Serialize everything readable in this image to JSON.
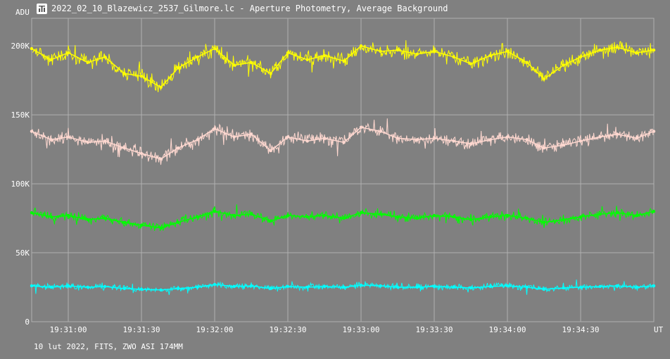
{
  "window": {
    "title": "2022_02_10_Blazewicz_2537_Gilmore.lc - Aperture Photometry, Average Background",
    "icon": "photometry-app-icon"
  },
  "footer": {
    "info": "10 lut 2022, FITS, ZWO ASI 174MM"
  },
  "colors": {
    "background": "#808080",
    "grid": "#b0b0b0",
    "text": "#ffffff"
  },
  "chart_data": {
    "type": "line",
    "ylabel": "ADU",
    "xlabel": "UT",
    "y_tick_labels": [
      "0",
      "50K",
      "100K",
      "150K",
      "200K"
    ],
    "y_ticks": [
      0,
      50000,
      100000,
      150000,
      200000
    ],
    "ylim": [
      0,
      220000
    ],
    "x_tick_labels": [
      "19:31:00",
      "19:31:30",
      "19:32:00",
      "19:32:30",
      "19:33:00",
      "19:33:30",
      "19:34:00",
      "19:34:30"
    ],
    "x_ticks": [
      "19:31:00",
      "19:31:30",
      "19:32:00",
      "19:32:30",
      "19:33:00",
      "19:33:30",
      "19:34:00",
      "19:34:30"
    ],
    "xlim": [
      "19:30:45",
      "19:35:00"
    ],
    "grid": true,
    "series": [
      {
        "color": "#ffff00",
        "x": [
          "19:30:45",
          "19:30:53",
          "19:31:00",
          "19:31:08",
          "19:31:15",
          "19:31:23",
          "19:31:30",
          "19:31:38",
          "19:31:45",
          "19:31:53",
          "19:32:00",
          "19:32:08",
          "19:32:15",
          "19:32:23",
          "19:32:30",
          "19:32:38",
          "19:32:45",
          "19:32:53",
          "19:33:00",
          "19:33:08",
          "19:33:15",
          "19:33:23",
          "19:33:30",
          "19:33:38",
          "19:33:45",
          "19:33:53",
          "19:34:00",
          "19:34:08",
          "19:34:15",
          "19:34:23",
          "19:34:30",
          "19:34:38",
          "19:34:45",
          "19:34:53",
          "19:35:00"
        ],
        "values": [
          198000,
          190000,
          195000,
          188000,
          192000,
          180000,
          178000,
          170000,
          184000,
          192000,
          198000,
          186000,
          188000,
          180000,
          195000,
          190000,
          193000,
          189000,
          200000,
          196000,
          197000,
          194000,
          196000,
          192000,
          187000,
          193000,
          196000,
          188000,
          176000,
          186000,
          192000,
          197000,
          199000,
          195000,
          197000
        ]
      },
      {
        "color": "#ffd8d0",
        "x": [
          "19:30:45",
          "19:30:53",
          "19:31:00",
          "19:31:08",
          "19:31:15",
          "19:31:23",
          "19:31:30",
          "19:31:38",
          "19:31:45",
          "19:31:53",
          "19:32:00",
          "19:32:08",
          "19:32:15",
          "19:32:23",
          "19:32:30",
          "19:32:38",
          "19:32:45",
          "19:32:53",
          "19:33:00",
          "19:33:08",
          "19:33:15",
          "19:33:23",
          "19:33:30",
          "19:33:38",
          "19:33:45",
          "19:33:53",
          "19:34:00",
          "19:34:08",
          "19:34:15",
          "19:34:23",
          "19:34:30",
          "19:34:38",
          "19:34:45",
          "19:34:53",
          "19:35:00"
        ],
        "values": [
          138000,
          132000,
          134000,
          130000,
          131000,
          126000,
          122000,
          118000,
          126000,
          132000,
          140000,
          134000,
          136000,
          124000,
          134000,
          131000,
          133000,
          130000,
          141000,
          138000,
          133000,
          132000,
          133000,
          131000,
          129000,
          132000,
          134000,
          132000,
          126000,
          128000,
          131000,
          134000,
          136000,
          133000,
          138000
        ]
      },
      {
        "color": "#00ff00",
        "x": [
          "19:30:45",
          "19:30:53",
          "19:31:00",
          "19:31:08",
          "19:31:15",
          "19:31:23",
          "19:31:30",
          "19:31:38",
          "19:31:45",
          "19:31:53",
          "19:32:00",
          "19:32:08",
          "19:32:15",
          "19:32:23",
          "19:32:30",
          "19:32:38",
          "19:32:45",
          "19:32:53",
          "19:33:00",
          "19:33:08",
          "19:33:15",
          "19:33:23",
          "19:33:30",
          "19:33:38",
          "19:33:45",
          "19:33:53",
          "19:34:00",
          "19:34:08",
          "19:34:15",
          "19:34:23",
          "19:34:30",
          "19:34:38",
          "19:34:45",
          "19:34:53",
          "19:35:00"
        ],
        "values": [
          79000,
          76000,
          77000,
          74000,
          75000,
          72000,
          70000,
          68000,
          72000,
          76000,
          80000,
          77000,
          78000,
          73000,
          77000,
          76000,
          77000,
          75000,
          79000,
          78000,
          76000,
          75000,
          77000,
          76000,
          74000,
          76000,
          77000,
          75000,
          72000,
          74000,
          76000,
          78000,
          79000,
          77000,
          80000
        ]
      },
      {
        "color": "#00ffff",
        "x": [
          "19:30:45",
          "19:30:53",
          "19:31:00",
          "19:31:08",
          "19:31:15",
          "19:31:23",
          "19:31:30",
          "19:31:38",
          "19:31:45",
          "19:31:53",
          "19:32:00",
          "19:32:08",
          "19:32:15",
          "19:32:23",
          "19:32:30",
          "19:32:38",
          "19:32:45",
          "19:32:53",
          "19:33:00",
          "19:33:08",
          "19:33:15",
          "19:33:23",
          "19:33:30",
          "19:33:38",
          "19:33:45",
          "19:33:53",
          "19:34:00",
          "19:34:08",
          "19:34:15",
          "19:34:23",
          "19:34:30",
          "19:34:38",
          "19:34:45",
          "19:34:53",
          "19:35:00"
        ],
        "values": [
          26000,
          25000,
          26000,
          25000,
          25500,
          24000,
          23500,
          23000,
          24000,
          25000,
          27000,
          25500,
          26000,
          24000,
          25500,
          25000,
          25500,
          25000,
          26500,
          26000,
          25000,
          25000,
          25500,
          25000,
          24500,
          25500,
          26000,
          25000,
          23500,
          24500,
          25000,
          25500,
          26000,
          25000,
          26000
        ]
      }
    ]
  }
}
